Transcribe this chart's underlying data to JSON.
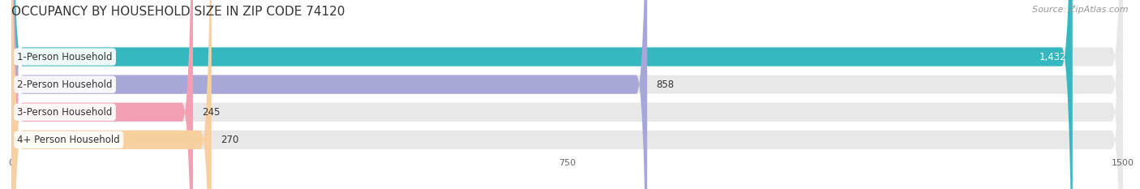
{
  "title": "OCCUPANCY BY HOUSEHOLD SIZE IN ZIP CODE 74120",
  "source": "Source: ZipAtlas.com",
  "categories": [
    "1-Person Household",
    "2-Person Household",
    "3-Person Household",
    "4+ Person Household"
  ],
  "values": [
    1432,
    858,
    245,
    270
  ],
  "bar_colors": [
    "#35b8bf",
    "#a8a8d8",
    "#f4a0b4",
    "#f8d0a0"
  ],
  "xlim": [
    0,
    1500
  ],
  "xticks": [
    0,
    750,
    1500
  ],
  "background_color": "#ffffff",
  "bar_bg_color": "#e8e8e8",
  "row_bg_color": "#f0f0f0",
  "title_fontsize": 11,
  "source_fontsize": 8,
  "label_fontsize": 8.5,
  "value_fontsize": 8.5
}
